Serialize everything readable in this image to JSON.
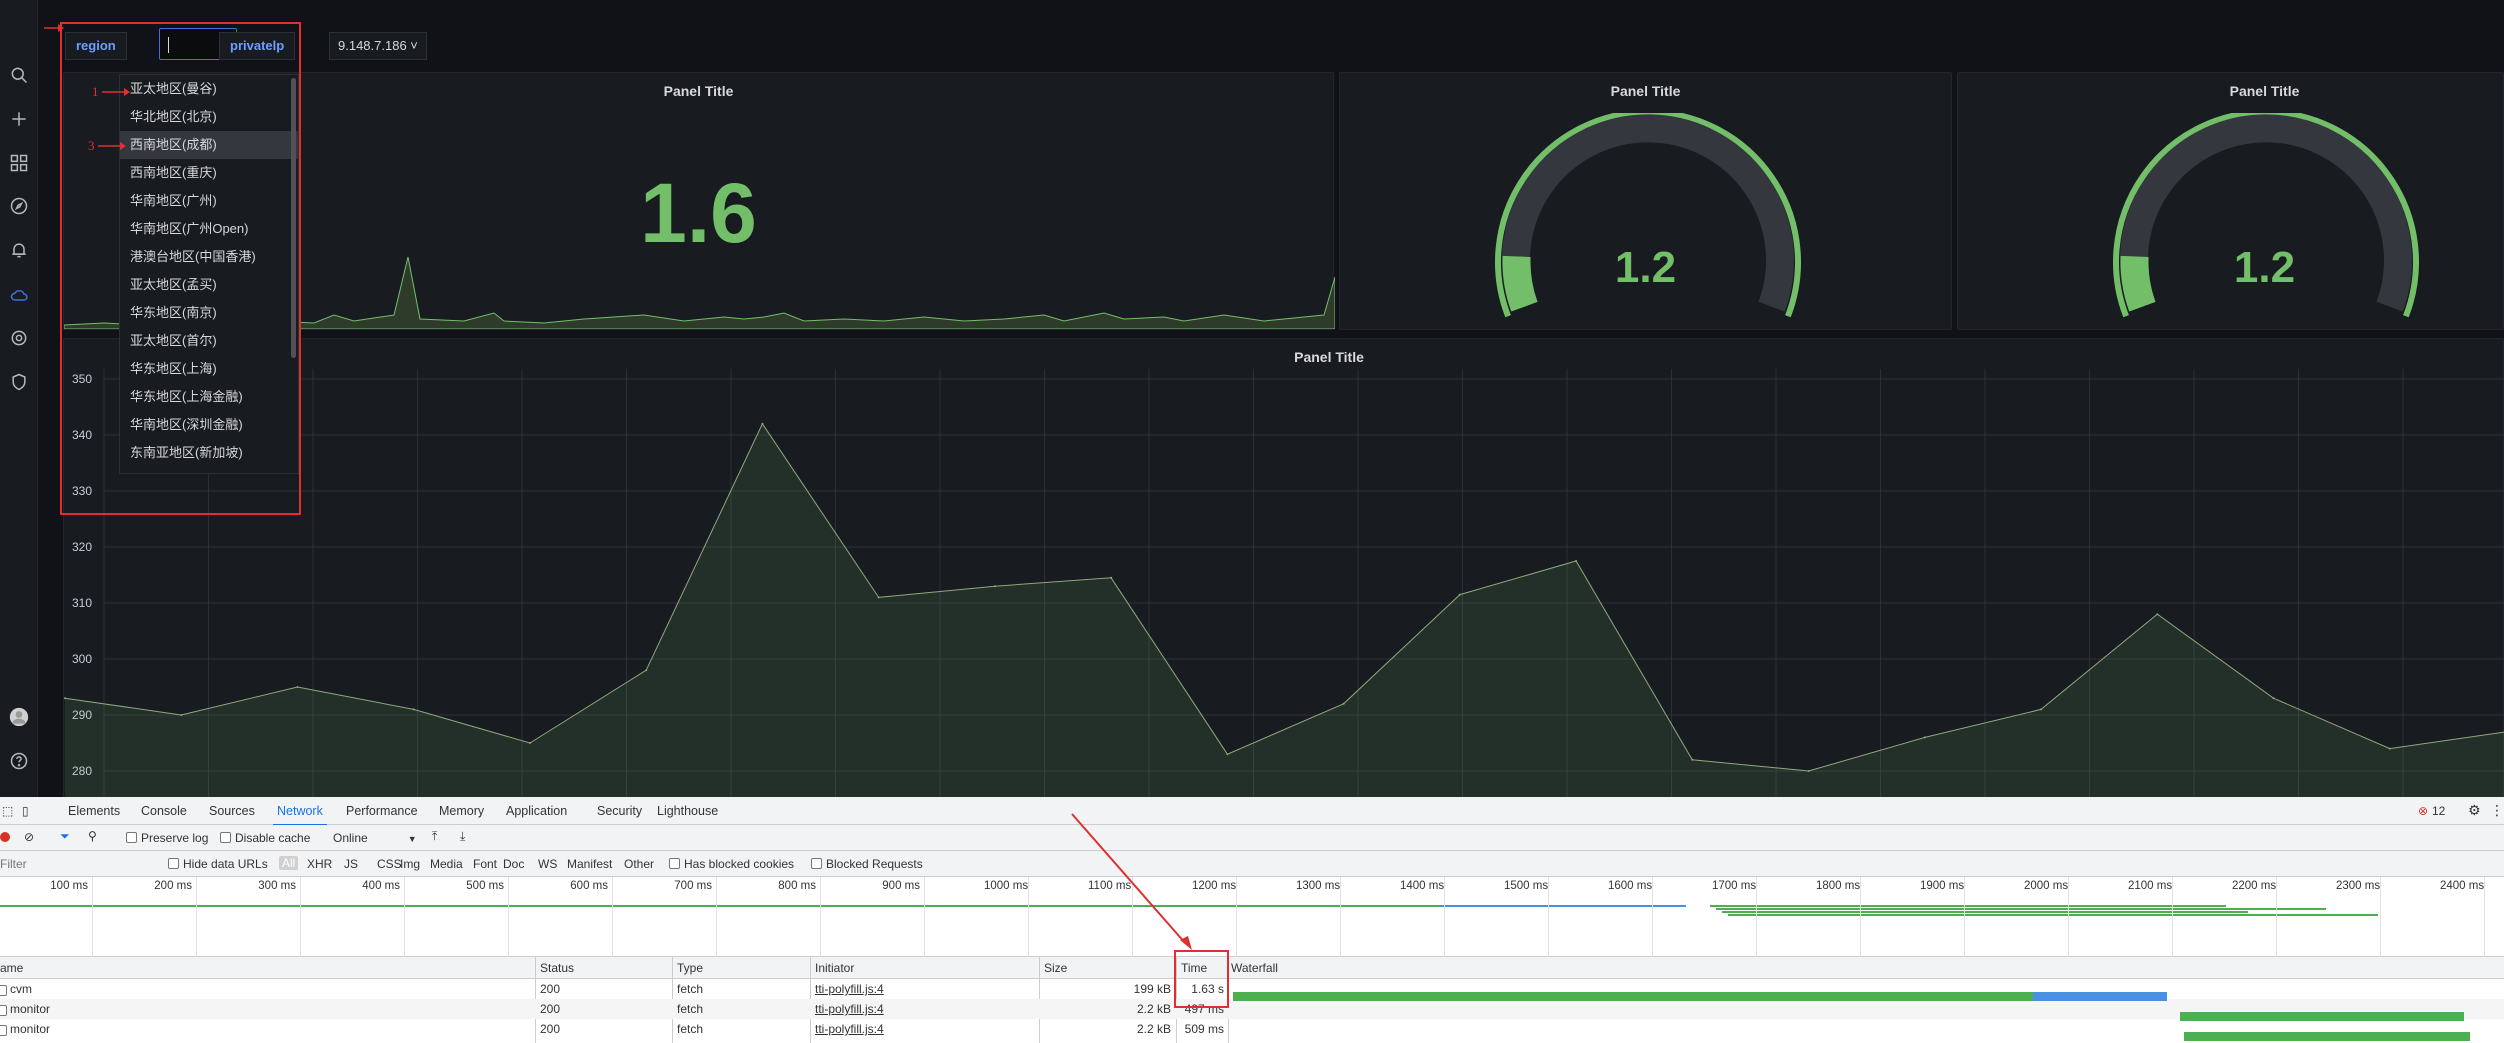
{
  "sidebar": {
    "icons": [
      "search-icon",
      "plus-icon",
      "dashboards-icon",
      "explore-icon",
      "alert-bell-icon",
      "cloud-icon",
      "gear-icon",
      "shield-icon",
      "avatar",
      "help-icon"
    ]
  },
  "variables": {
    "region_label": "region",
    "region_value": "",
    "privateip_label": "privatelp",
    "privateip_value": "9.148.7.186 ˅"
  },
  "region_dropdown": {
    "options": [
      "亚太地区(曼谷)",
      "华北地区(北京)",
      "西南地区(成都)",
      "西南地区(重庆)",
      "华南地区(广州)",
      "华南地区(广州Open)",
      "港澳台地区(中国香港)",
      "亚太地区(孟买)",
      "华东地区(南京)",
      "亚太地区(首尔)",
      "华东地区(上海)",
      "华东地区(上海金融)",
      "华南地区(深圳金融)",
      "东南亚地区(新加坡)"
    ],
    "highlighted_index": 2
  },
  "annotations": {
    "one": "1",
    "three": "3"
  },
  "panels": {
    "stat": {
      "title": "Panel Title",
      "value": "1.6"
    },
    "gauge1": {
      "title": "Panel Title",
      "value": "1.2"
    },
    "gauge2": {
      "title": "Panel Title",
      "value": "1.2"
    },
    "graph": {
      "title": "Panel Title"
    }
  },
  "colors": {
    "accent_green": "#73bf69",
    "blue_link": "#6e9fff",
    "annotation_red": "#e02f2f",
    "devtools_blue": "#1a73e8"
  },
  "chart_data": [
    {
      "type": "area",
      "title": "Panel Title",
      "y_ticks": [
        "350",
        "340",
        "330",
        "320",
        "310",
        "300",
        "290",
        "280"
      ],
      "ylim": [
        275,
        355
      ],
      "values": [
        293,
        290,
        295,
        291,
        285,
        298,
        342,
        311,
        313,
        314.5,
        283,
        292,
        311.5,
        317.5,
        282,
        280,
        286,
        291,
        308,
        293,
        284,
        287
      ]
    }
  ],
  "devtools": {
    "tabs": [
      "Elements",
      "Console",
      "Sources",
      "Network",
      "Performance",
      "Memory",
      "Application",
      "Security",
      "Lighthouse"
    ],
    "active_tab": "Network",
    "error_count": "12",
    "toolbar": {
      "preserve_log": "Preserve log",
      "disable_cache": "Disable cache",
      "throttle": "Online"
    },
    "filter": {
      "placeholder": "Filter",
      "hide_data_urls": "Hide data URLs",
      "types": [
        "All",
        "XHR",
        "JS",
        "CSS",
        "Img",
        "Media",
        "Font",
        "Doc",
        "WS",
        "Manifest",
        "Other"
      ],
      "has_blocked_cookies": "Has blocked cookies",
      "blocked_requests": "Blocked Requests"
    },
    "timeline_ticks": [
      "100 ms",
      "200 ms",
      "300 ms",
      "400 ms",
      "500 ms",
      "600 ms",
      "700 ms",
      "800 ms",
      "900 ms",
      "1000 ms",
      "1100 ms",
      "1200 ms",
      "1300 ms",
      "1400 ms",
      "1500 ms",
      "1600 ms",
      "1700 ms",
      "1800 ms",
      "1900 ms",
      "2000 ms",
      "2100 ms",
      "2200 ms",
      "2300 ms",
      "2400 ms"
    ],
    "columns": [
      "ame",
      "Status",
      "Type",
      "Initiator",
      "Size",
      "Time",
      "Waterfall"
    ],
    "rows": [
      {
        "name": "cvm",
        "status": "200",
        "type": "fetch",
        "initiator": "tti-polyfill.js:4",
        "size": "199 kB",
        "time": "1.63 s"
      },
      {
        "name": "monitor",
        "status": "200",
        "type": "fetch",
        "initiator": "tti-polyfill.js:4",
        "size": "2.2 kB",
        "time": "497 ms"
      },
      {
        "name": "monitor",
        "status": "200",
        "type": "fetch",
        "initiator": "tti-polyfill.js:4",
        "size": "2.2 kB",
        "time": "509 ms"
      }
    ]
  }
}
